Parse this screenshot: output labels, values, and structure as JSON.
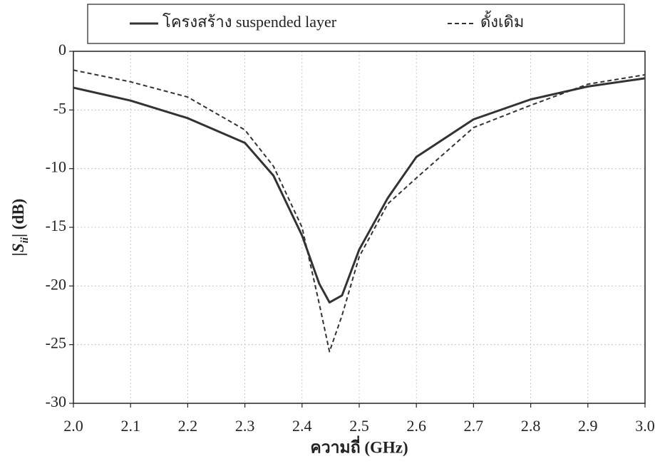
{
  "chart_data": {
    "type": "line",
    "xlabel": "ความถี่ (GHz)",
    "ylabel": [
      "|S",
      "ii",
      "| (dB)"
    ],
    "x": [
      2.0,
      2.1,
      2.2,
      2.3,
      2.35,
      2.4,
      2.43,
      2.448,
      2.47,
      2.5,
      2.55,
      2.6,
      2.7,
      2.8,
      2.9,
      3.0
    ],
    "series": [
      {
        "name": "โครงสร้าง suspended layer",
        "color": "#333333",
        "style": "solid",
        "values": [
          -3.1,
          -4.2,
          -5.7,
          -7.8,
          -10.6,
          -15.7,
          -19.8,
          -21.4,
          -20.8,
          -16.9,
          -12.5,
          -9.0,
          -5.8,
          -4.1,
          -3.0,
          -2.3
        ]
      },
      {
        "name": "ดั้งเดิม",
        "color": "#333333",
        "style": "dashed",
        "values": [
          -1.6,
          -2.6,
          -3.9,
          -6.7,
          -9.8,
          -15.0,
          -21.5,
          -25.6,
          -22.5,
          -17.5,
          -13.0,
          -10.8,
          -6.5,
          -4.6,
          -2.8,
          -2.0
        ]
      }
    ],
    "xlim": [
      2.0,
      3.0
    ],
    "xticks": [
      {
        "value": 2.0,
        "label": "2.0"
      },
      2.1,
      2.2,
      2.3,
      2.4,
      2.5,
      2.6,
      2.7,
      2.8,
      2.9,
      {
        "value": 3.0,
        "label": "3.0"
      }
    ],
    "ylim": [
      -30,
      0
    ],
    "yticks": [
      0,
      -5,
      -10,
      -15,
      -20,
      -25,
      -30
    ],
    "grid": true
  }
}
